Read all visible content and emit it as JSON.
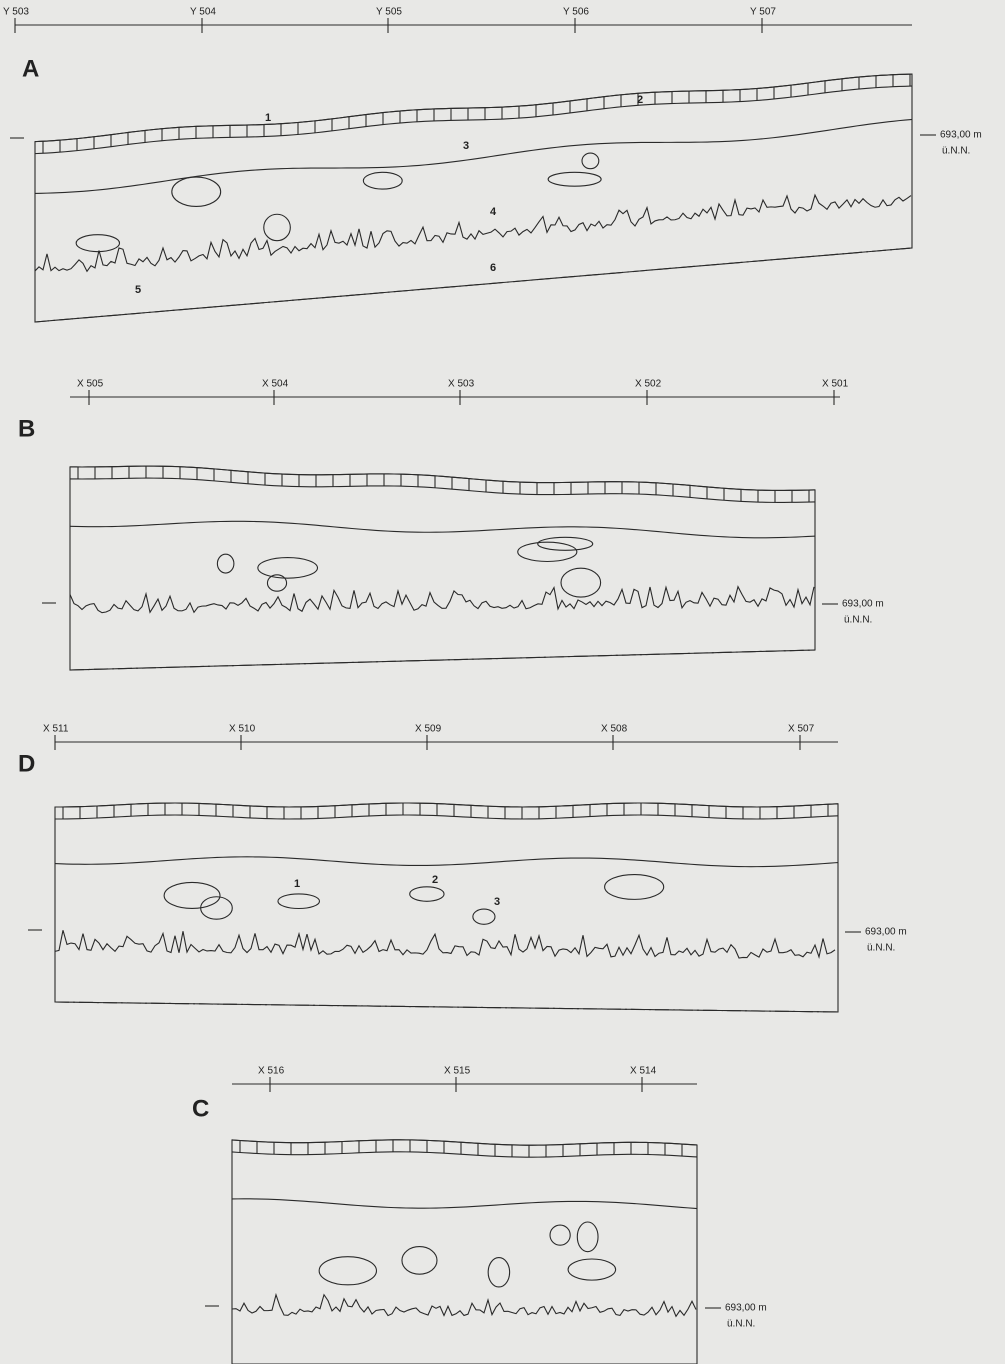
{
  "panels": [
    {
      "label": "A",
      "grid_labels": [
        "Y 503",
        "Y 504",
        "Y 505",
        "Y 506",
        "Y 507"
      ],
      "layers": [
        "1",
        "2",
        "3",
        "4",
        "5",
        "6"
      ],
      "elevation": "693,00 m",
      "datum": "ü.N.N."
    },
    {
      "label": "B",
      "grid_labels": [
        "X 505",
        "X 504",
        "X 503",
        "X 502",
        "X 501"
      ],
      "elevation": "693,00 m",
      "datum": "ü.N.N."
    },
    {
      "label": "D",
      "grid_labels": [
        "X 511",
        "X 510",
        "X 509",
        "X 508",
        "X 507"
      ],
      "layers": [
        "1",
        "2",
        "3"
      ],
      "elevation": "693,00 m",
      "datum": "ü.N.N."
    },
    {
      "label": "C",
      "grid_labels": [
        "X 516",
        "X 515",
        "X 514"
      ],
      "elevation": "693,00 m",
      "datum": "ü.N.N."
    }
  ]
}
